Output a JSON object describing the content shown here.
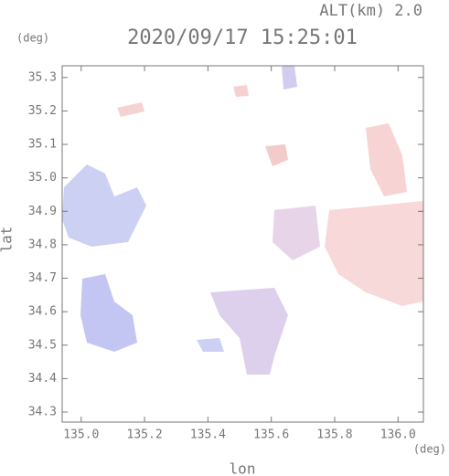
{
  "chart_data": {
    "type": "map",
    "title": "2020/09/17 15:25:01",
    "subtitle": "ALT(km) 2.0",
    "y_unit": "(deg)",
    "x_unit": "(deg)",
    "x_label": "lon",
    "y_label": "lat",
    "xlim": [
      134.94,
      136.08
    ],
    "ylim": [
      34.27,
      35.335
    ],
    "xticks": [
      {
        "value": 135,
        "label": "135.0"
      },
      135.2,
      135.4,
      135.6,
      135.8,
      {
        "value": 136,
        "label": "136.0"
      }
    ],
    "yticks": [
      34.3,
      34.4,
      34.5,
      34.6,
      34.7,
      34.8,
      34.9,
      {
        "value": 35,
        "label": "35.0"
      },
      35.1,
      35.2,
      35.3
    ]
  }
}
